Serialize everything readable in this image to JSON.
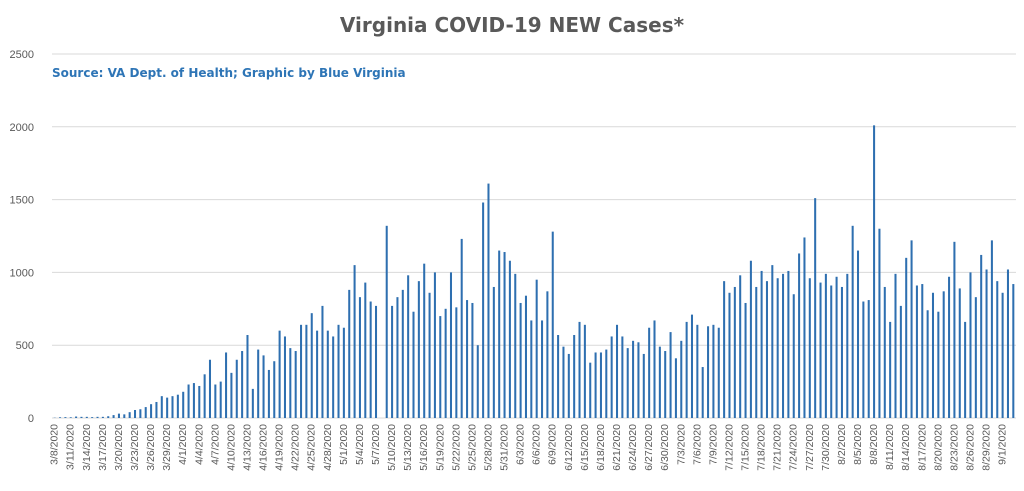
{
  "chart_data": {
    "type": "bar",
    "title": "Virginia COVID-19 NEW Cases*",
    "subtitle": "Source: VA Dept. of Health; Graphic by Blue Virginia",
    "xlabel": "",
    "ylabel": "",
    "ylim": [
      0,
      2500
    ],
    "yticks": [
      "0",
      "500",
      "1000",
      "1500",
      "2000",
      "2500"
    ],
    "grid": true,
    "bar_color": "#2e6fb0",
    "start_date": "3/8/2020",
    "tick_labels": [
      "3/8/2020",
      "3/11/2020",
      "3/14/2020",
      "3/17/2020",
      "3/20/2020",
      "3/23/2020",
      "3/26/2020",
      "3/29/2020",
      "4/1/2020",
      "4/4/2020",
      "4/7/2020",
      "4/10/2020",
      "4/13/2020",
      "4/16/2020",
      "4/19/2020",
      "4/22/2020",
      "4/25/2020",
      "4/28/2020",
      "5/1/2020",
      "5/4/2020",
      "5/7/2020",
      "5/10/2020",
      "5/13/2020",
      "5/16/2020",
      "5/19/2020",
      "5/22/2020",
      "5/25/2020",
      "5/28/2020",
      "5/31/2020",
      "6/3/2020",
      "6/6/2020",
      "6/9/2020",
      "6/12/2020",
      "6/15/2020",
      "6/18/2020",
      "6/21/2020",
      "6/24/2020",
      "6/27/2020",
      "6/30/2020",
      "7/3/2020",
      "7/6/2020",
      "7/9/2020",
      "7/12/2020",
      "7/15/2020",
      "7/18/2020",
      "7/21/2020",
      "7/24/2020",
      "7/27/2020",
      "7/30/2020",
      "8/2/2020",
      "8/5/2020",
      "8/8/2020",
      "8/11/2020",
      "8/14/2020",
      "8/17/2020",
      "8/20/2020",
      "8/23/2020",
      "8/26/2020",
      "8/29/2020",
      "9/1/2020"
    ],
    "values": [
      2,
      5,
      6,
      5,
      10,
      8,
      8,
      6,
      8,
      8,
      12,
      20,
      30,
      25,
      40,
      55,
      60,
      75,
      95,
      110,
      150,
      140,
      150,
      160,
      180,
      230,
      240,
      220,
      300,
      400,
      230,
      250,
      450,
      310,
      400,
      460,
      570,
      200,
      470,
      430,
      330,
      390,
      600,
      560,
      480,
      460,
      640,
      640,
      720,
      600,
      770,
      600,
      560,
      640,
      620,
      880,
      1050,
      830,
      930,
      800,
      770,
      0,
      1320,
      770,
      830,
      880,
      980,
      730,
      940,
      1060,
      860,
      1000,
      700,
      750,
      1000,
      760,
      1230,
      810,
      790,
      500,
      1480,
      1610,
      900,
      1150,
      1140,
      1080,
      990,
      790,
      840,
      670,
      950,
      670,
      870,
      1280,
      570,
      490,
      440,
      570,
      660,
      640,
      380,
      450,
      450,
      470,
      560,
      640,
      560,
      480,
      530,
      520,
      440,
      620,
      670,
      490,
      460,
      590,
      410,
      530,
      660,
      710,
      640,
      350,
      630,
      640,
      620,
      940,
      860,
      900,
      980,
      790,
      1080,
      900,
      1010,
      940,
      1050,
      960,
      990,
      1010,
      850,
      1130,
      1240,
      960,
      1510,
      930,
      990,
      910,
      970,
      900,
      990,
      1320,
      1150,
      800,
      810,
      2010,
      1300,
      900,
      660,
      990,
      770,
      1100,
      1220,
      910,
      920,
      740,
      860,
      730,
      870,
      970,
      1210,
      890,
      660,
      1000,
      830,
      1120,
      1020,
      1220,
      940,
      860,
      1020,
      920
    ]
  }
}
